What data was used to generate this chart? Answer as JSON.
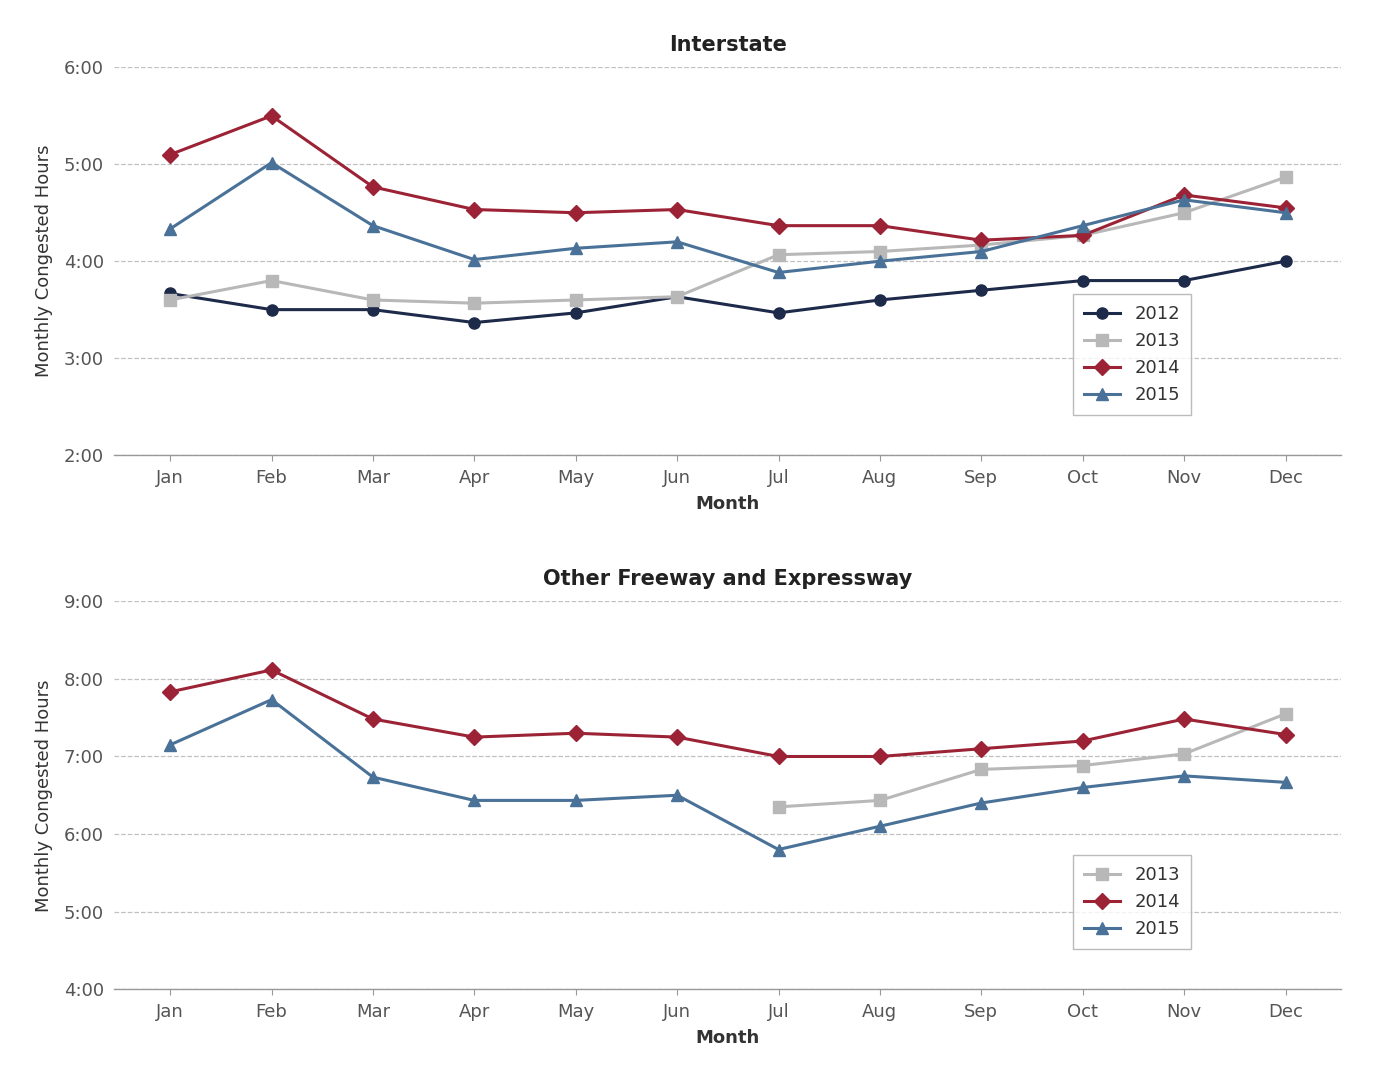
{
  "interstate": {
    "title": "Interstate",
    "ylabel": "Monthly Congested Hours",
    "xlabel": "Month",
    "months": [
      "Jan",
      "Feb",
      "Mar",
      "Apr",
      "May",
      "Jun",
      "Jul",
      "Aug",
      "Sep",
      "Oct",
      "Nov",
      "Dec"
    ],
    "ylim_min_min": 120,
    "ylim_max_min": 360,
    "ytick_minutes": [
      120,
      180,
      240,
      300,
      360
    ],
    "ytick_labels": [
      "2:00",
      "3:00",
      "4:00",
      "5:00",
      "6:00"
    ],
    "series": [
      {
        "label": "2012",
        "color": "#1e2a4a",
        "marker": "o",
        "data_min": [
          220,
          210,
          210,
          202,
          208,
          218,
          208,
          216,
          222,
          228,
          228,
          240
        ]
      },
      {
        "label": "2013",
        "color": "#b8b8b8",
        "marker": "s",
        "data_min": [
          216,
          228,
          216,
          214,
          216,
          218,
          244,
          246,
          250,
          256,
          270,
          292
        ]
      },
      {
        "label": "2014",
        "color": "#9b2335",
        "marker": "D",
        "data_min": [
          306,
          330,
          286,
          272,
          270,
          272,
          262,
          262,
          253,
          256,
          281,
          273
        ]
      },
      {
        "label": "2015",
        "color": "#4a7298",
        "marker": "^",
        "data_min": [
          260,
          301,
          262,
          241,
          248,
          252,
          233,
          240,
          246,
          262,
          278,
          270
        ]
      }
    ]
  },
  "freeway": {
    "title": "Other Freeway and Expressway",
    "ylabel": "Monthly Congested Hours",
    "xlabel": "Month",
    "months": [
      "Jan",
      "Feb",
      "Mar",
      "Apr",
      "May",
      "Jun",
      "Jul",
      "Aug",
      "Sep",
      "Oct",
      "Nov",
      "Dec"
    ],
    "ylim_min_min": 240,
    "ylim_max_min": 540,
    "ytick_minutes": [
      240,
      300,
      360,
      420,
      480,
      540
    ],
    "ytick_labels": [
      "4:00",
      "5:00",
      "6:00",
      "7:00",
      "8:00",
      "9:00"
    ],
    "series": [
      {
        "label": "2013",
        "color": "#b8b8b8",
        "marker": "s",
        "data_min": [
          null,
          null,
          null,
          null,
          null,
          null,
          381,
          386,
          410,
          413,
          422,
          453
        ]
      },
      {
        "label": "2014",
        "color": "#9b2335",
        "marker": "D",
        "data_min": [
          470,
          487,
          449,
          435,
          438,
          435,
          420,
          420,
          426,
          432,
          449,
          437
        ]
      },
      {
        "label": "2015",
        "color": "#4a7298",
        "marker": "^",
        "data_min": [
          429,
          464,
          404,
          386,
          386,
          390,
          348,
          366,
          384,
          396,
          405,
          400
        ]
      }
    ]
  },
  "fig_bg_color": "#ffffff",
  "plot_bg_color": "#ffffff",
  "grid_color": "#c0c0c0",
  "spine_color": "#999999",
  "tick_color": "#555555",
  "title_color": "#222222",
  "label_color": "#333333",
  "line_width": 2.2,
  "marker_size": 8,
  "legend_border_color": "#aaaaaa",
  "font_family": "DejaVu Sans"
}
